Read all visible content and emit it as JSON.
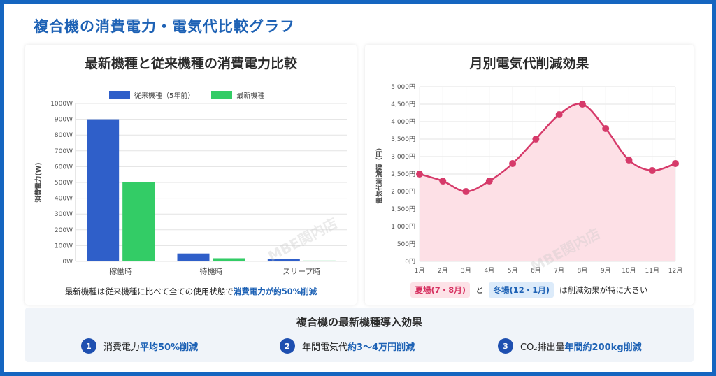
{
  "page_title": "複合機の消費電力・電気代比較グラフ",
  "left_panel": {
    "title": "最新機種と従来機種の消費電力比較",
    "note_prefix": "最新機種は従来機種に比べて全ての使用状態で",
    "note_highlight": "消費電力が約50%削減",
    "watermark": "MBE関内店"
  },
  "right_panel": {
    "title": "月別電気代削減効果",
    "tag_summer": "夏場(7・8月)",
    "connector": "と",
    "tag_winter": "冬場(12・1月)",
    "note_suffix": "は削減効果が特に大きい",
    "watermark": "MBE関内店"
  },
  "bottom": {
    "title": "複合機の最新機種導入効果",
    "effects": [
      {
        "num": "1",
        "label": "消費電力",
        "highlight": "平均50%削減"
      },
      {
        "num": "2",
        "label": "年間電気代",
        "highlight": "約3〜4万円削減"
      },
      {
        "num": "3",
        "label": "CO₂排出量",
        "highlight": "年間約200kg削減"
      }
    ]
  },
  "chart_data": [
    {
      "type": "bar",
      "title": "最新機種と従来機種の消費電力比較",
      "categories": [
        "稼働時",
        "待機時",
        "スリープ時"
      ],
      "series": [
        {
          "name": "従来機種（5年前）",
          "values": [
            900,
            50,
            15
          ],
          "color": "#2f5fc9"
        },
        {
          "name": "最新機種",
          "values": [
            500,
            20,
            5
          ],
          "color": "#33cc66"
        }
      ],
      "xlabel": "",
      "ylabel": "消費電力(W)",
      "ylim": [
        0,
        1000
      ],
      "yticks": [
        0,
        100,
        200,
        300,
        400,
        500,
        600,
        700,
        800,
        900,
        1000
      ],
      "ytick_labels": [
        "0W",
        "100W",
        "200W",
        "300W",
        "400W",
        "500W",
        "600W",
        "700W",
        "800W",
        "900W",
        "1000W"
      ],
      "legend": "top",
      "grid": true
    },
    {
      "type": "area",
      "title": "月別電気代削減効果",
      "categories": [
        "1月",
        "2月",
        "3月",
        "4月",
        "5月",
        "6月",
        "7月",
        "8月",
        "9月",
        "10月",
        "11月",
        "12月"
      ],
      "series": [
        {
          "values": [
            2500,
            2300,
            2000,
            2300,
            2800,
            3500,
            4200,
            4500,
            3800,
            2900,
            2600,
            2800
          ],
          "color": "#d63a6a",
          "fill": "#fde0e6"
        }
      ],
      "xlabel": "",
      "ylabel": "電気代削減額（円）",
      "ylim": [
        0,
        5000
      ],
      "yticks": [
        0,
        500,
        1000,
        1500,
        2000,
        2500,
        3000,
        3500,
        4000,
        4500,
        5000
      ],
      "ytick_labels": [
        "0円",
        "500円",
        "1,000円",
        "1,500円",
        "2,000円",
        "2,500円",
        "3,000円",
        "3,500円",
        "4,000円",
        "4,500円",
        "5,000円"
      ],
      "grid": true
    }
  ]
}
